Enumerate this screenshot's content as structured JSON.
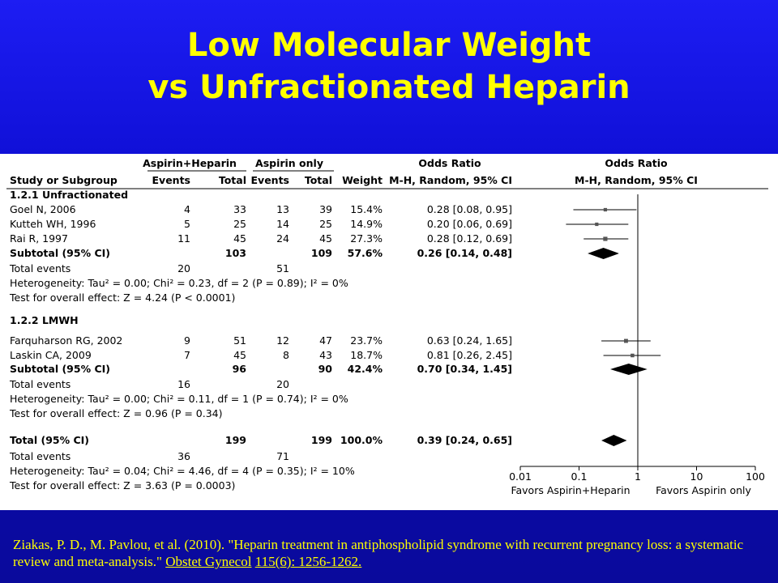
{
  "title": {
    "line1": "Low Molecular Weight",
    "line2": "vs Unfractionated Heparin"
  },
  "table": {
    "header_group": {
      "treatment": "Aspirin+Heparin",
      "control": "Aspirin only",
      "or_text": "Odds Ratio",
      "or_plot": "Odds Ratio"
    },
    "header": {
      "study": "Study or Subgroup",
      "events1": "Events",
      "total1": "Total",
      "events2": "Events",
      "total2": "Total",
      "weight": "Weight",
      "method": "M-H, Random, 95% CI",
      "method_plot": "M-H, Random, 95% CI"
    },
    "subgroup1": {
      "label": "1.2.1 Unfractionated",
      "studies": [
        {
          "name": "Goel N, 2006",
          "e1": "4",
          "t1": "33",
          "e2": "13",
          "t2": "39",
          "weight": "15.4%",
          "ci": "0.28 [0.08, 0.95]",
          "or": 0.28,
          "lo": 0.08,
          "hi": 0.95
        },
        {
          "name": "Kutteh WH, 1996",
          "e1": "5",
          "t1": "25",
          "e2": "14",
          "t2": "25",
          "weight": "14.9%",
          "ci": "0.20 [0.06, 0.69]",
          "or": 0.2,
          "lo": 0.06,
          "hi": 0.69
        },
        {
          "name": "Rai R, 1997",
          "e1": "11",
          "t1": "45",
          "e2": "24",
          "t2": "45",
          "weight": "27.3%",
          "ci": "0.28 [0.12, 0.69]",
          "or": 0.28,
          "lo": 0.12,
          "hi": 0.69
        }
      ],
      "subtotal": {
        "name": "Subtotal (95% CI)",
        "t1": "103",
        "t2": "109",
        "weight": "57.6%",
        "ci": "0.26 [0.14, 0.48]",
        "or": 0.26,
        "lo": 0.14,
        "hi": 0.48
      },
      "total_events": {
        "label": "Total events",
        "e1": "20",
        "e2": "51"
      },
      "heterogeneity": "Heterogeneity: Tau² = 0.00; Chi² = 0.23, df = 2 (P = 0.89); I² = 0%",
      "overall": "Test for overall effect: Z = 4.24 (P < 0.0001)"
    },
    "subgroup2": {
      "label": "1.2.2 LMWH",
      "studies": [
        {
          "name": "Farquharson RG, 2002",
          "e1": "9",
          "t1": "51",
          "e2": "12",
          "t2": "47",
          "weight": "23.7%",
          "ci": "0.63 [0.24, 1.65]",
          "or": 0.63,
          "lo": 0.24,
          "hi": 1.65
        },
        {
          "name": "Laskin CA, 2009",
          "e1": "7",
          "t1": "45",
          "e2": "8",
          "t2": "43",
          "weight": "18.7%",
          "ci": "0.81 [0.26, 2.45]",
          "or": 0.81,
          "lo": 0.26,
          "hi": 2.45
        }
      ],
      "subtotal": {
        "name": "Subtotal (95% CI)",
        "t1": "96",
        "t2": "90",
        "weight": "42.4%",
        "ci": "0.70 [0.34, 1.45]",
        "or": 0.7,
        "lo": 0.34,
        "hi": 1.45
      },
      "total_events": {
        "label": "Total events",
        "e1": "16",
        "e2": "20"
      },
      "heterogeneity": "Heterogeneity: Tau² = 0.00; Chi² = 0.11, df = 1 (P = 0.74); I² = 0%",
      "overall": "Test for overall effect: Z = 0.96 (P = 0.34)"
    },
    "total": {
      "name": "Total (95% CI)",
      "t1": "199",
      "t2": "199",
      "weight": "100.0%",
      "ci": "0.39 [0.24, 0.65]",
      "or": 0.39,
      "lo": 0.24,
      "hi": 0.65
    },
    "total_events": {
      "label": "Total events",
      "e1": "36",
      "e2": "71"
    },
    "heterogeneity": "Heterogeneity: Tau² = 0.04; Chi² = 4.46, df = 4 (P = 0.35); I² = 10%",
    "overall": "Test for overall effect: Z = 3.63 (P = 0.0003)"
  },
  "chart_data": {
    "type": "scatter",
    "title": "Odds Ratio",
    "subtitle": "M-H, Random, 95% CI",
    "xscale": "log",
    "xlim": [
      0.01,
      100
    ],
    "ticks": [
      "0.01",
      "0.1",
      "1",
      "10",
      "100"
    ],
    "tick_values": [
      0.01,
      0.1,
      1,
      10,
      100
    ],
    "favors_left": "Favors Aspirin+Heparin",
    "favors_right": "Favors Aspirin only",
    "reference_line": 1,
    "series": [
      {
        "name": "1.2.1 Unfractionated",
        "points": [
          {
            "label": "Goel N, 2006",
            "or": 0.28,
            "lo": 0.08,
            "hi": 0.95
          },
          {
            "label": "Kutteh WH, 1996",
            "or": 0.2,
            "lo": 0.06,
            "hi": 0.69
          },
          {
            "label": "Rai R, 1997",
            "or": 0.28,
            "lo": 0.12,
            "hi": 0.69
          }
        ],
        "subtotal": {
          "or": 0.26,
          "lo": 0.14,
          "hi": 0.48
        }
      },
      {
        "name": "1.2.2 LMWH",
        "points": [
          {
            "label": "Farquharson RG, 2002",
            "or": 0.63,
            "lo": 0.24,
            "hi": 1.65
          },
          {
            "label": "Laskin CA, 2009",
            "or": 0.81,
            "lo": 0.26,
            "hi": 2.45
          }
        ],
        "subtotal": {
          "or": 0.7,
          "lo": 0.34,
          "hi": 1.45
        }
      }
    ],
    "total": {
      "or": 0.39,
      "lo": 0.24,
      "hi": 0.65
    }
  },
  "citation": {
    "text": "Ziakas, P. D., M. Pavlou, et al. (2010). \"Heparin treatment in antiphospholipid syndrome with recurrent pregnancy loss: a systematic review and meta-analysis.\" ",
    "journal": "Obstet Gynecol",
    "volume": "115(6): 1256-1262."
  },
  "colors": {
    "title": "#ffff00",
    "background": "#0c0ccf",
    "panel": "#ffffff"
  }
}
